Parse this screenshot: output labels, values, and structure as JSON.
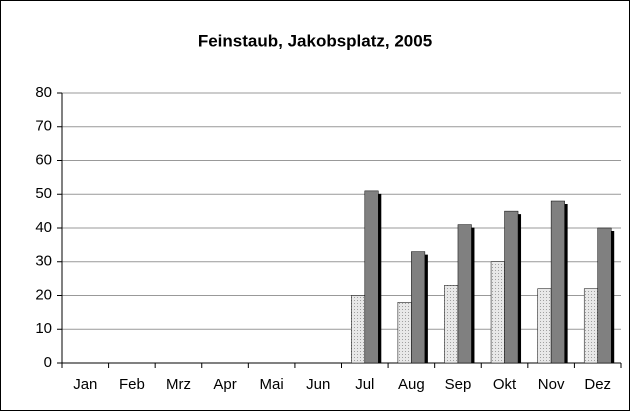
{
  "chart_data": {
    "type": "bar",
    "title": "Feinstaub, Jakobsplatz, 2005",
    "categories": [
      "Jan",
      "Feb",
      "Mrz",
      "Apr",
      "Mai",
      "Jun",
      "Jul",
      "Aug",
      "Sep",
      "Okt",
      "Nov",
      "Dez"
    ],
    "series": [
      {
        "color": "#d4d4d4",
        "values": [
          null,
          null,
          null,
          null,
          null,
          null,
          20,
          18,
          23,
          30,
          22,
          22
        ]
      },
      {
        "color": "#808080",
        "values": [
          null,
          null,
          null,
          null,
          null,
          null,
          51,
          33,
          41,
          45,
          48,
          40
        ]
      }
    ],
    "ylim": [
      0,
      80
    ],
    "yticks": [
      0,
      10,
      20,
      30,
      40,
      50,
      60,
      70,
      80
    ],
    "grid": true
  }
}
